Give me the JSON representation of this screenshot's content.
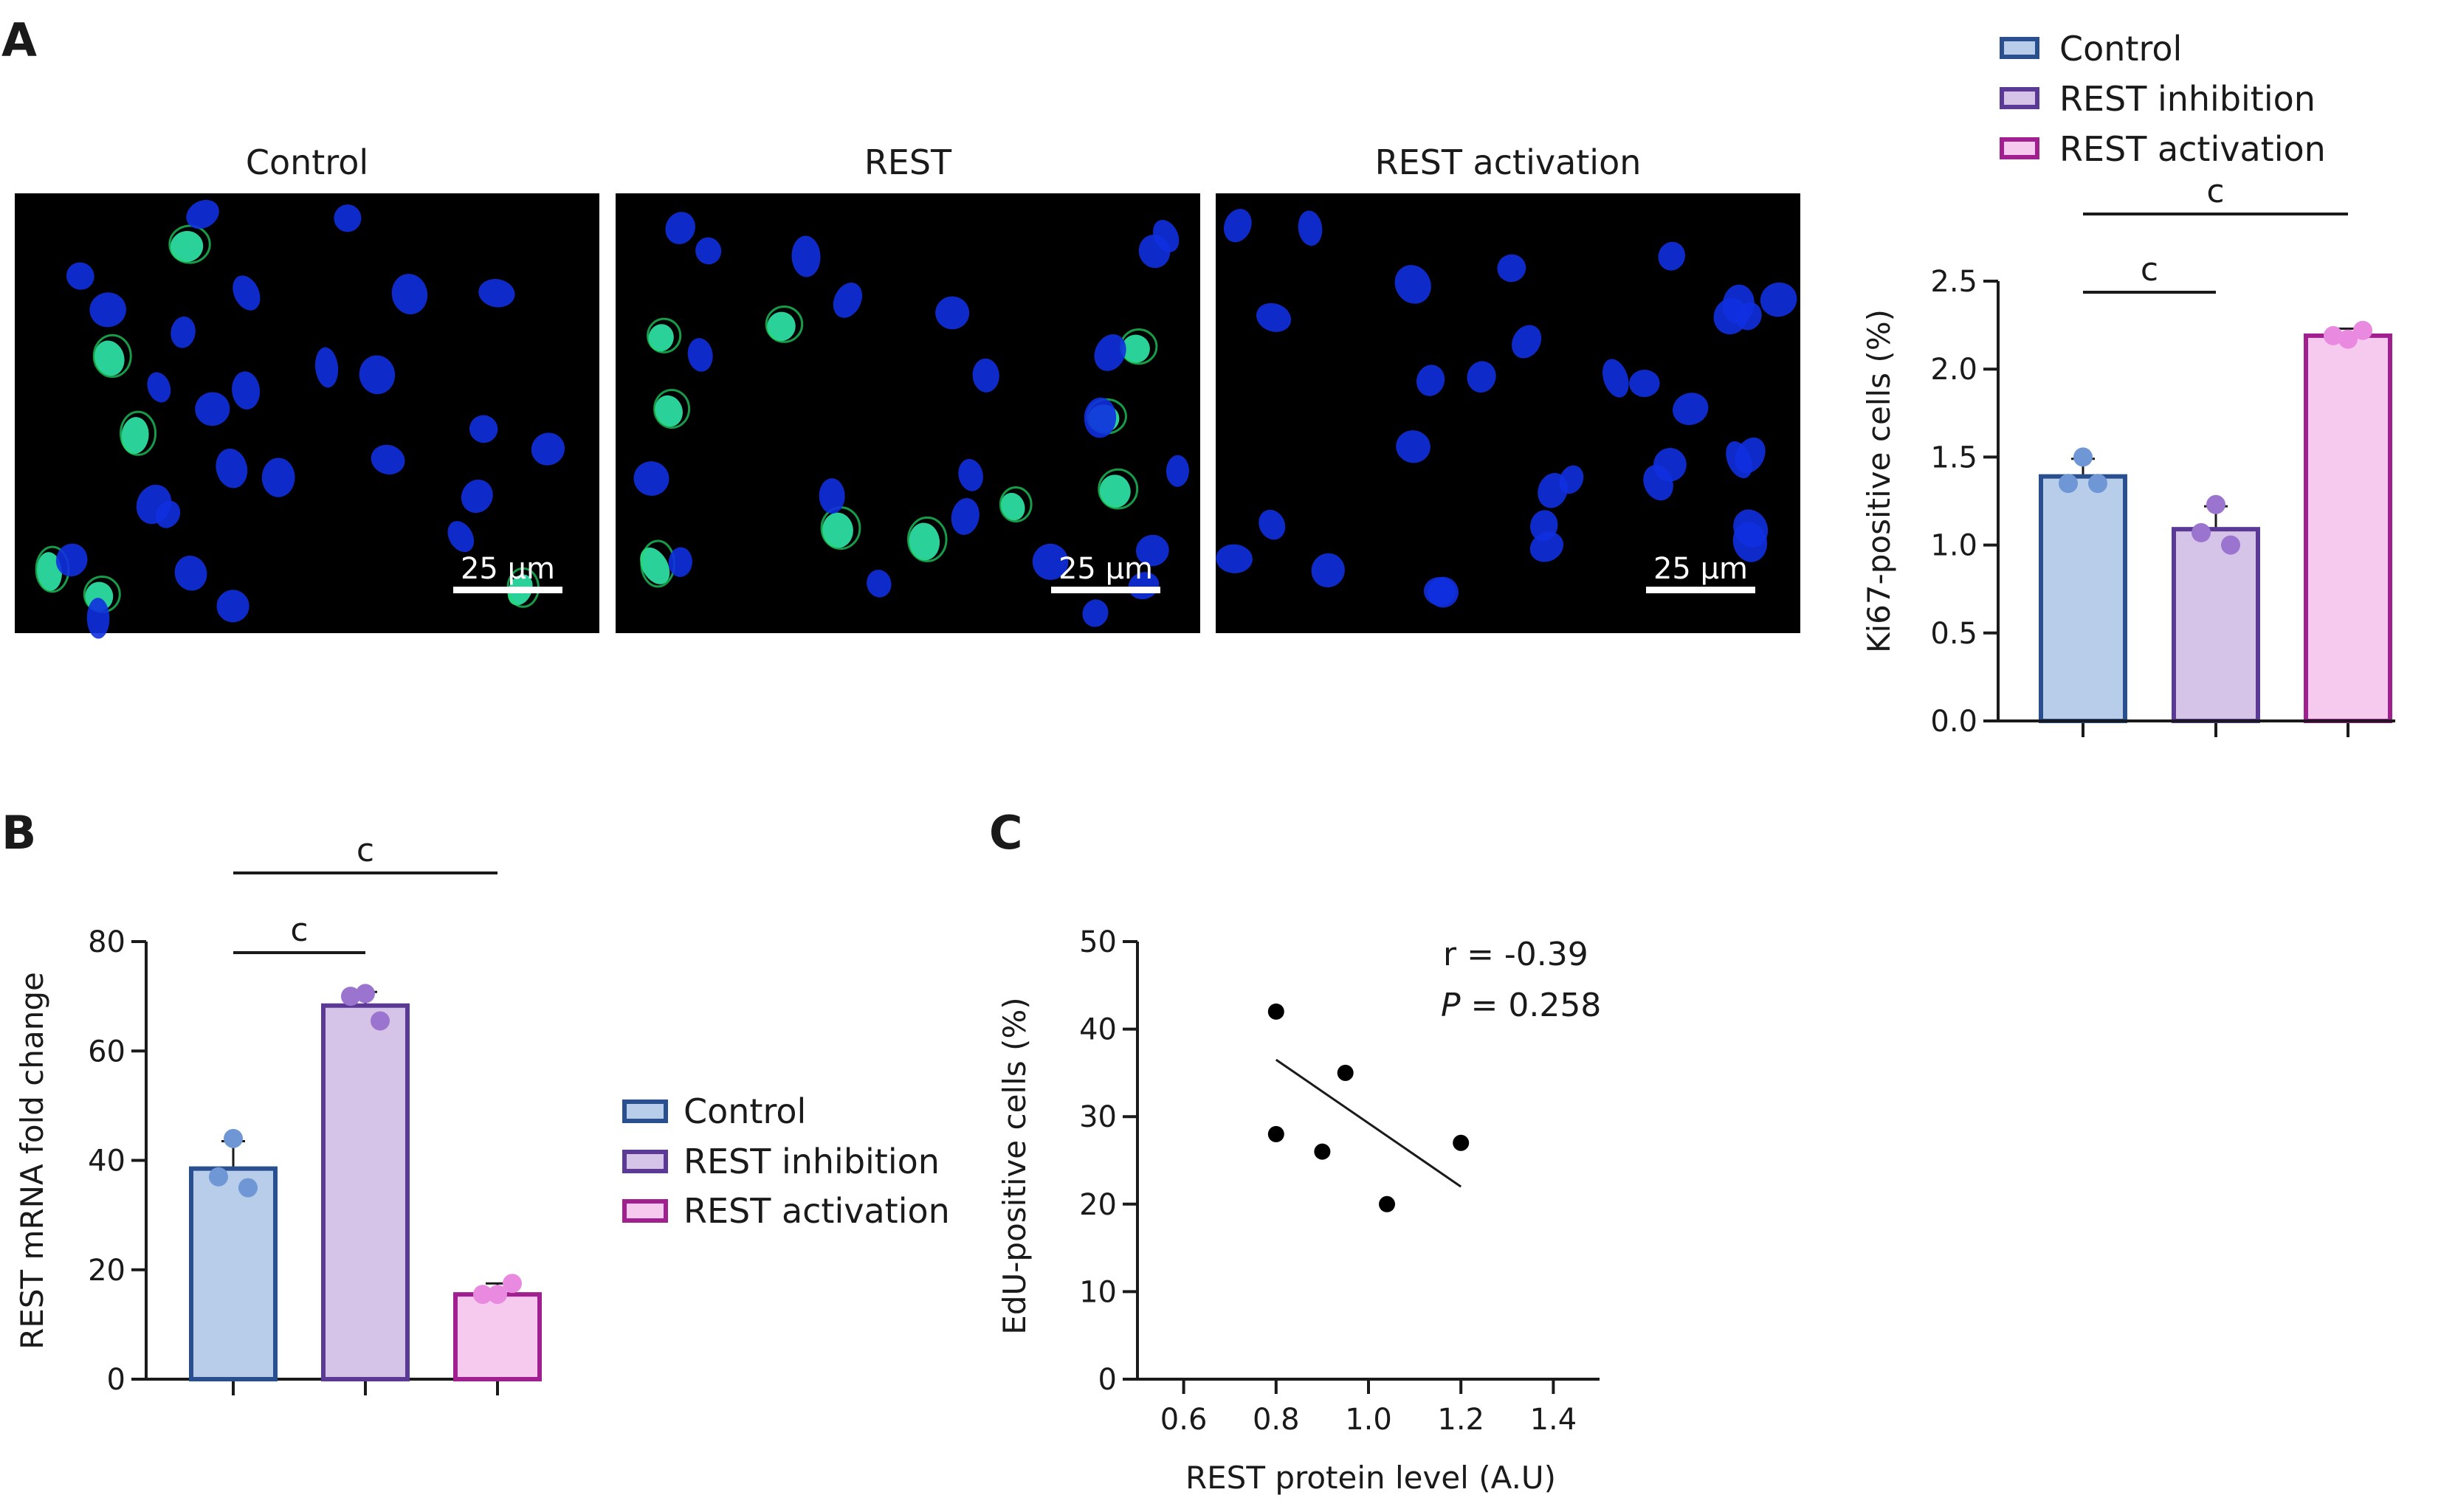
{
  "panel_labels": {
    "a": "A",
    "b": "B",
    "c": "C"
  },
  "micrographs": [
    {
      "label": "Control",
      "scale_text": "25 μm"
    },
    {
      "label": "REST",
      "scale_text": "25 μm"
    },
    {
      "label": "REST activation",
      "scale_text": "25 μm"
    }
  ],
  "colors": {
    "control_fill": "#b8cdea",
    "control_stroke": "#2a4f8e",
    "control_dot": "#6f97d6",
    "inhibition_fill": "#d6c3e8",
    "inhibition_stroke": "#5a3a94",
    "inhibition_dot": "#9a74cf",
    "activation_fill": "#f6c9ef",
    "activation_stroke": "#a0208f",
    "activation_dot": "#e98ae0",
    "nuclei": "#1030e0",
    "ki67": "#22dd66",
    "micrograph_bg": "#000000"
  },
  "legend": [
    "Control",
    "REST inhibition",
    "REST activation"
  ],
  "chart_data": [
    {
      "type": "bar",
      "panel": "A",
      "categories": [
        "Control",
        "REST inhibition",
        "REST activation"
      ],
      "values": [
        1.39,
        1.09,
        2.19
      ],
      "errors": [
        0.1,
        0.13,
        0.04
      ],
      "points": [
        [
          1.5,
          1.35,
          1.35
        ],
        [
          1.23,
          1.0,
          1.07
        ],
        [
          2.17,
          2.22,
          2.19
        ]
      ],
      "ylabel": "Ki67-positive cells (%)",
      "ylim": [
        0,
        2.5
      ],
      "yticks": [
        "0.0",
        "0.5",
        "1.0",
        "1.5",
        "2.0",
        "2.5"
      ],
      "significance": [
        {
          "from": 0,
          "to": 1,
          "label": "c"
        },
        {
          "from": 0,
          "to": 2,
          "label": "c"
        }
      ]
    },
    {
      "type": "bar",
      "panel": "B",
      "categories": [
        "Control",
        "REST inhibition",
        "REST activation"
      ],
      "values": [
        38.5,
        68.3,
        15.5
      ],
      "errors": [
        5.0,
        2.5,
        2.0
      ],
      "points": [
        [
          44,
          35,
          37
        ],
        [
          70.5,
          65.5,
          70
        ],
        [
          15.5,
          17.5,
          15.5
        ]
      ],
      "ylabel": "REST mRNA fold change",
      "ylim": [
        0,
        80
      ],
      "yticks": [
        "0",
        "20",
        "40",
        "60",
        "80"
      ],
      "significance": [
        {
          "from": 0,
          "to": 1,
          "label": "c"
        },
        {
          "from": 0,
          "to": 2,
          "label": "c"
        }
      ]
    },
    {
      "type": "scatter",
      "panel": "C",
      "x": [
        0.8,
        0.8,
        0.9,
        0.95,
        1.04,
        1.2
      ],
      "y": [
        42,
        28,
        26,
        35,
        20,
        27
      ],
      "fit_line": {
        "x": [
          0.8,
          1.2
        ],
        "y": [
          36.5,
          22
        ]
      },
      "xlabel": "REST protein level (A.U)",
      "ylabel": "EdU-positive cells (%)",
      "xlim": [
        0.5,
        1.5
      ],
      "ylim": [
        0,
        50
      ],
      "xticks": [
        "0.6",
        "0.8",
        "1.0",
        "1.2",
        "1.4"
      ],
      "yticks": [
        "0",
        "10",
        "20",
        "30",
        "40",
        "50"
      ],
      "stats": {
        "r_text": "r = -0.39",
        "p_symbol": "P",
        "p_text": " = 0.258"
      }
    }
  ]
}
